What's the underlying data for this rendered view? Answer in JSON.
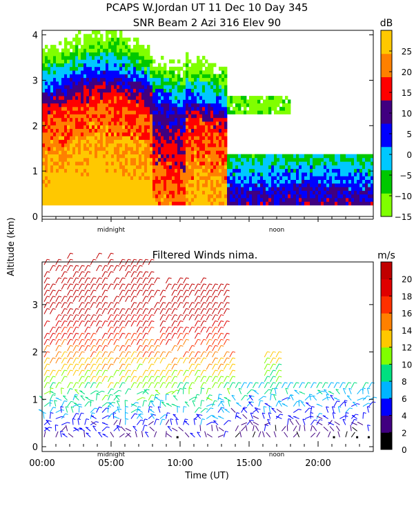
{
  "title_line1": "PCAPS W.Jordan UT  11 Dec 10 Day 345",
  "ylabel": "Altitude (km)",
  "xlabel": "Time (UT)",
  "colors": {
    "snr": [
      "#80ff00",
      "#00c800",
      "#00c8ff",
      "#0000ff",
      "#400080",
      "#ff0000",
      "#ff8000",
      "#ffc800"
    ],
    "wind": [
      "#000000",
      "#400080",
      "#0000ff",
      "#00b4ff",
      "#00e080",
      "#80ff00",
      "#ffc800",
      "#ff8000",
      "#ff3000",
      "#e00000",
      "#c00000"
    ]
  },
  "chart_data": [
    {
      "type": "heatmap",
      "title": "SNR Beam 2 Azi 316 Elev 90",
      "ylim": [
        0,
        4.1
      ],
      "yticks": [
        "0",
        "1",
        "2",
        "3",
        "4"
      ],
      "xmarks": [
        "midnight",
        "noon"
      ],
      "colorbar": {
        "unit": "dB",
        "ticks": [
          "25",
          "20",
          "15",
          "10",
          "5",
          "0",
          "−5",
          "−10",
          "−15"
        ],
        "range": [
          -15,
          30
        ]
      },
      "regions": [
        {
          "t": [
            0,
            14
          ],
          "alt_top": 4.1,
          "level": "high SNR (10–30 dB) below 2.5–3.5 km"
        },
        {
          "t": [
            14,
            24
          ],
          "alt_top": 1.2,
          "level": "moderate SNR (0–15 dB) below 1.2 km"
        }
      ]
    },
    {
      "type": "scatter",
      "title": "Filtered Winds nima.",
      "ylim": [
        0,
        3.9
      ],
      "yticks": [
        "0",
        "1",
        "2",
        "3"
      ],
      "xticks": [
        "00:00",
        "05:00",
        "10:00",
        "15:00",
        "20:00"
      ],
      "xmarks": [
        "midnight",
        "noon"
      ],
      "colorbar": {
        "unit": "m/s",
        "ticks": [
          "20",
          "18",
          "16",
          "14",
          "12",
          "10",
          "8",
          "6",
          "4",
          "2",
          "0"
        ],
        "range": [
          0,
          22
        ]
      }
    }
  ]
}
